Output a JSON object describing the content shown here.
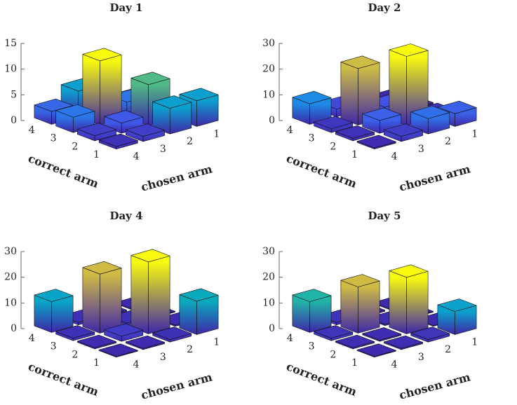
{
  "chart_data": [
    {
      "type": "bar3d",
      "title": "Day 1",
      "xlabel": "chosen arm",
      "ylabel": "correct arm",
      "x_categories": [
        "1",
        "2",
        "3",
        "4"
      ],
      "y_categories": [
        "1",
        "2",
        "3",
        "4"
      ],
      "values": [
        [
          5,
          5,
          1,
          0.5
        ],
        [
          1,
          8,
          2,
          1
        ],
        [
          0.5,
          3,
          12.5,
          3
        ],
        [
          0.3,
          1,
          5,
          2.5
        ]
      ],
      "zlim": [
        0,
        15
      ],
      "zticks": [
        0,
        5,
        10,
        15
      ],
      "colormap": "parula"
    },
    {
      "type": "bar3d",
      "title": "Day 2",
      "xlabel": "chosen arm",
      "ylabel": "correct arm",
      "x_categories": [
        "1",
        "2",
        "3",
        "4"
      ],
      "y_categories": [
        "1",
        "2",
        "3",
        "4"
      ],
      "values": [
        [
          5,
          6,
          2,
          0.5
        ],
        [
          1,
          27,
          5,
          1
        ],
        [
          0.5,
          4,
          22,
          1.5
        ],
        [
          0.3,
          1,
          3,
          8
        ]
      ],
      "zlim": [
        0,
        30
      ],
      "zticks": [
        0,
        10,
        20,
        30
      ],
      "colormap": "parula"
    },
    {
      "type": "bar3d",
      "title": "Day 4",
      "xlabel": "chosen arm",
      "ylabel": "correct arm",
      "x_categories": [
        "1",
        "2",
        "3",
        "4"
      ],
      "y_categories": [
        "1",
        "2",
        "3",
        "4"
      ],
      "values": [
        [
          13,
          1,
          0.5,
          0.3
        ],
        [
          0.5,
          28,
          2,
          0.5
        ],
        [
          0.3,
          1,
          23,
          1
        ],
        [
          0.3,
          0.5,
          1,
          12
        ]
      ],
      "zlim": [
        0,
        30
      ],
      "zticks": [
        0,
        10,
        20,
        30
      ],
      "colormap": "parula"
    },
    {
      "type": "bar3d",
      "title": "Day 5",
      "xlabel": "chosen arm",
      "ylabel": "correct arm",
      "x_categories": [
        "1",
        "2",
        "3",
        "4"
      ],
      "y_categories": [
        "1",
        "2",
        "3",
        "4"
      ],
      "values": [
        [
          9,
          1,
          0.5,
          0.3
        ],
        [
          0.3,
          22,
          0.5,
          0.5
        ],
        [
          0.3,
          0.5,
          18,
          1
        ],
        [
          0.3,
          0.5,
          1,
          12
        ]
      ],
      "zlim": [
        0,
        30
      ],
      "zticks": [
        0,
        10,
        20,
        30
      ],
      "colormap": "parula"
    }
  ]
}
